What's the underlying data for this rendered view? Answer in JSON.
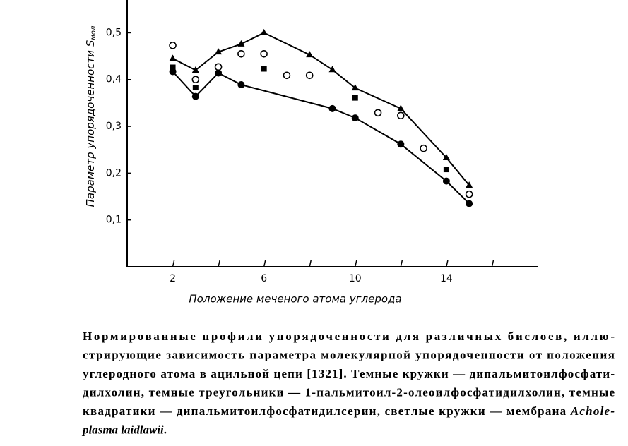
{
  "chart_data": {
    "type": "scatter",
    "ylabel": "Параметр упорядоченности S",
    "ylabel_sub": "мол",
    "xlabel": "Положение меченого атома углерода",
    "xlim": [
      0,
      18
    ],
    "xticks": [
      2,
      6,
      10,
      14
    ],
    "xminor": [
      4,
      8,
      12,
      16
    ],
    "ylim": [
      0,
      0.57
    ],
    "yticks": [
      {
        "value": 0.1,
        "label": "0,1"
      },
      {
        "value": 0.2,
        "label": "0,2"
      },
      {
        "value": 0.3,
        "label": "0,3"
      },
      {
        "value": 0.4,
        "label": "0,4"
      },
      {
        "value": 0.5,
        "label": "0,5"
      }
    ],
    "series": [
      {
        "marker": "circle-filled",
        "line": true,
        "color": "#000000",
        "x": [
          2,
          3,
          4,
          5,
          9,
          10,
          12,
          14,
          15
        ],
        "values": [
          0.417,
          0.364,
          0.414,
          0.389,
          0.338,
          0.318,
          0.262,
          0.183,
          0.135
        ]
      },
      {
        "marker": "triangle",
        "line": true,
        "color": "#000000",
        "x": [
          2,
          3,
          4,
          5,
          6,
          8,
          9,
          10,
          12,
          14,
          15
        ],
        "values": [
          0.445,
          0.42,
          0.459,
          0.476,
          0.5,
          0.453,
          0.421,
          0.382,
          0.338,
          0.233,
          0.174
        ]
      },
      {
        "marker": "square",
        "line": false,
        "color": "#000000",
        "x": [
          2,
          3,
          6,
          10,
          14
        ],
        "values": [
          0.426,
          0.383,
          0.423,
          0.361,
          0.208
        ]
      },
      {
        "marker": "circle-open",
        "line": false,
        "color": "#000000",
        "x": [
          2,
          3,
          4,
          5,
          6,
          7,
          8,
          11,
          12,
          13,
          15
        ],
        "values": [
          0.473,
          0.4,
          0.427,
          0.455,
          0.455,
          0.409,
          0.409,
          0.329,
          0.323,
          0.253,
          0.155
        ]
      }
    ],
    "caption": [
      [
        {
          "text": "Нормированные профили упорядоченности для различных бислоев, иллю-"
        }
      ],
      [
        {
          "text": "стрирующие зависимость параметра молекулярной упорядоченности от положения"
        }
      ],
      [
        {
          "text": "углеродного атома в ацильной цепи [1321]. Темные кружки — дипальмитоилфосфати-"
        }
      ],
      [
        {
          "text": "дилхолин, темные треугольники — 1-пальмитоил-2-олеоилфосфатидилхолин, темные"
        }
      ],
      [
        {
          "text": "квадратики — дипальмитоилфосфатидилсерин, светлые кружки — мембрана "
        },
        {
          "text": "Achole-",
          "italic": true
        }
      ],
      [
        {
          "text": "plasma laidlawii",
          "italic": true
        },
        {
          "text": "."
        }
      ]
    ]
  }
}
